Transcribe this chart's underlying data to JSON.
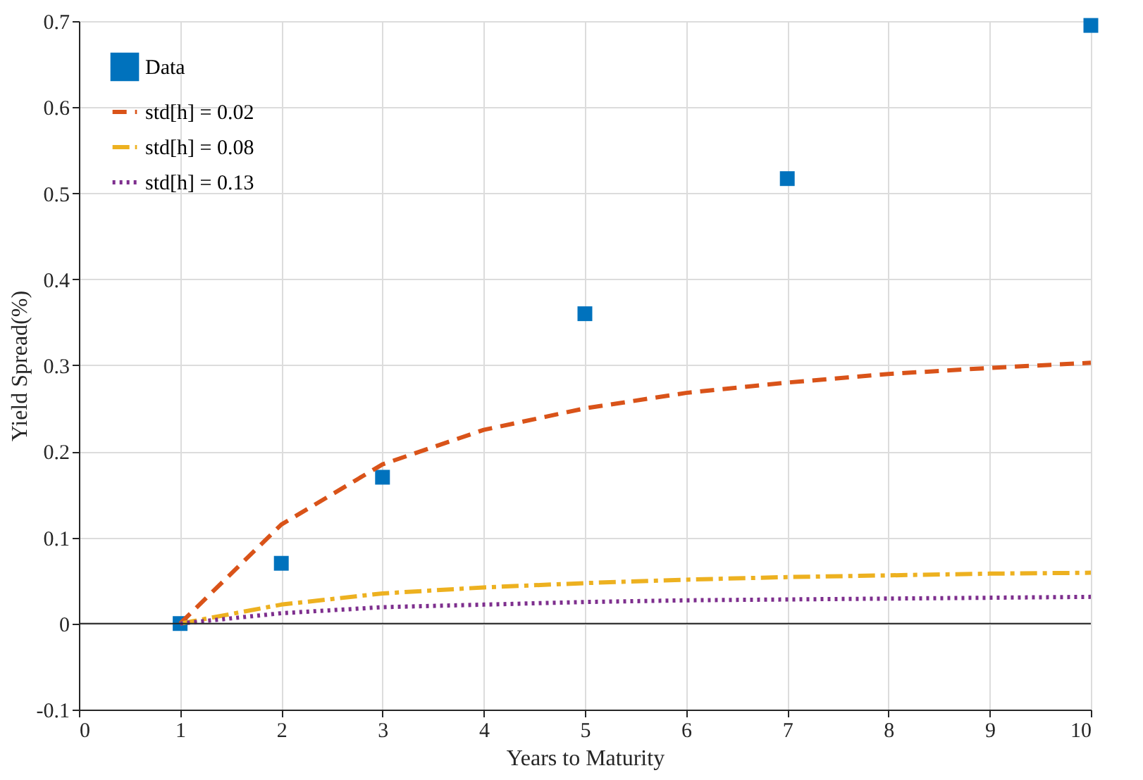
{
  "chart_data": {
    "type": "line",
    "xlabel": "Years to Maturity",
    "ylabel": "Yield Spread(%)",
    "xlim": [
      0,
      10
    ],
    "xticks": [
      0,
      1,
      2,
      3,
      4,
      5,
      6,
      7,
      8,
      9,
      10
    ],
    "ylim": [
      -0.1,
      0.7
    ],
    "yticks": [
      -0.1,
      0,
      0.1,
      0.2,
      0.3,
      0.4,
      0.5,
      0.6,
      0.7
    ],
    "grid": true,
    "legend": "top left",
    "ref_lines": [
      {
        "axis": "y",
        "value": 0,
        "color": "#262626",
        "line_style": "solid"
      }
    ],
    "series": [
      {
        "name": "Data",
        "type": "scatter",
        "marker": "square",
        "color": "#0072bd",
        "x": [
          1,
          2,
          3,
          5,
          7,
          10
        ],
        "values": [
          0,
          0.07,
          0.17,
          0.36,
          0.517,
          0.695
        ]
      },
      {
        "name": "std[h] = 0.02",
        "type": "line",
        "line_style": "dashed",
        "marker": "none",
        "color": "#d95319",
        "x": [
          1,
          2,
          3,
          4,
          5,
          6,
          7,
          8,
          9,
          10
        ],
        "values": [
          0,
          0.115,
          0.185,
          0.225,
          0.25,
          0.268,
          0.28,
          0.29,
          0.297,
          0.303
        ]
      },
      {
        "name": "std[h] = 0.08",
        "type": "line",
        "line_style": "dashdot",
        "marker": "none",
        "color": "#edb120",
        "x": [
          1,
          2,
          3,
          4,
          5,
          6,
          7,
          8,
          9,
          10
        ],
        "values": [
          0,
          0.022,
          0.035,
          0.042,
          0.047,
          0.051,
          0.054,
          0.056,
          0.058,
          0.059
        ]
      },
      {
        "name": "std[h] = 0.13",
        "type": "line",
        "line_style": "dotted",
        "marker": "none",
        "color": "#7e2f8e",
        "x": [
          1,
          2,
          3,
          4,
          5,
          6,
          7,
          8,
          9,
          10
        ],
        "values": [
          0,
          0.012,
          0.019,
          0.022,
          0.025,
          0.027,
          0.028,
          0.029,
          0.03,
          0.031
        ]
      }
    ]
  }
}
